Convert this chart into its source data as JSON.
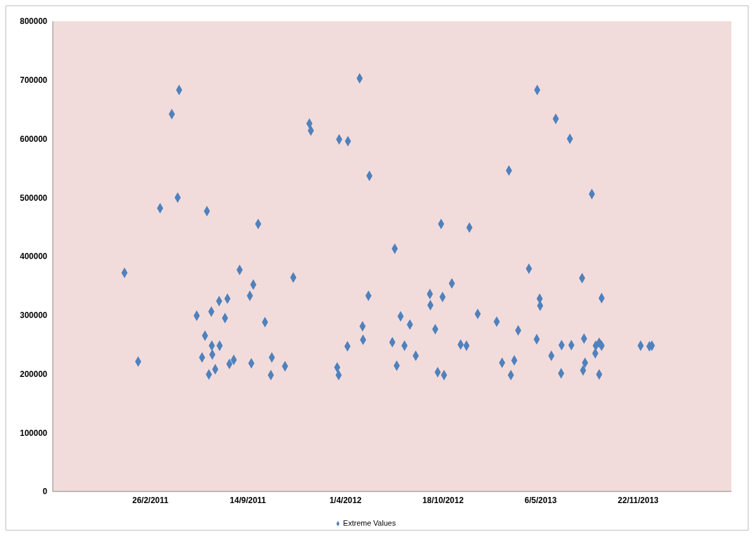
{
  "chart_data": {
    "type": "scatter",
    "x": [
      "2011-01-04",
      "2011-02-01",
      "2011-03-18",
      "2011-04-11",
      "2011-04-23",
      "2011-04-26",
      "2011-06-01",
      "2011-06-12",
      "2011-06-18",
      "2011-06-22",
      "2011-06-26",
      "2011-07-01",
      "2011-07-02",
      "2011-07-03",
      "2011-07-09",
      "2011-07-17",
      "2011-07-18",
      "2011-07-29",
      "2011-08-03",
      "2011-08-07",
      "2011-08-16",
      "2011-08-28",
      "2011-09-18",
      "2011-09-21",
      "2011-09-25",
      "2011-10-05",
      "2011-10-19",
      "2011-10-31",
      "2011-11-02",
      "2011-11-29",
      "2011-12-16",
      "2012-01-18",
      "2012-01-21",
      "2012-03-15",
      "2012-03-18",
      "2012-03-19",
      "2012-04-05",
      "2012-04-06",
      "2012-04-30",
      "2012-05-06",
      "2012-05-07",
      "2012-05-18",
      "2012-05-20",
      "2012-07-06",
      "2012-07-11",
      "2012-07-15",
      "2012-07-23",
      "2012-07-31",
      "2012-08-11",
      "2012-08-23",
      "2012-09-21",
      "2012-09-22",
      "2012-10-02",
      "2012-10-07",
      "2012-10-14",
      "2012-10-17",
      "2012-10-20",
      "2012-11-05",
      "2012-11-23",
      "2012-12-05",
      "2012-12-11",
      "2012-12-28",
      "2013-02-05",
      "2013-02-16",
      "2013-03-02",
      "2013-03-06",
      "2013-03-13",
      "2013-03-21",
      "2013-04-12",
      "2013-04-28",
      "2013-04-29",
      "2013-05-04",
      "2013-05-05",
      "2013-05-28",
      "2013-06-06",
      "2013-06-17",
      "2013-06-18",
      "2013-07-05",
      "2013-07-08",
      "2013-07-30",
      "2013-08-01",
      "2013-08-03",
      "2013-08-05",
      "2013-08-19",
      "2013-08-26",
      "2013-08-27",
      "2013-09-03",
      "2013-09-03",
      "2013-09-08",
      "2013-09-08",
      "2013-11-27",
      "2013-12-15",
      "2013-12-20"
    ],
    "series": [
      {
        "name": "Extreme Values",
        "color": "#4f81bd",
        "values": [
          372000,
          221000,
          482000,
          642000,
          500000,
          683000,
          299000,
          228000,
          265000,
          477000,
          199000,
          306000,
          248000,
          233000,
          208000,
          324000,
          248000,
          295000,
          328000,
          217000,
          224000,
          377000,
          333000,
          218000,
          352000,
          455000,
          288000,
          198000,
          228000,
          213000,
          364000,
          626000,
          614000,
          211000,
          198000,
          599000,
          247000,
          596000,
          703000,
          281000,
          258000,
          333000,
          537000,
          254000,
          413000,
          214000,
          298000,
          248000,
          284000,
          231000,
          336000,
          317000,
          276000,
          203000,
          455000,
          331000,
          198000,
          354000,
          250000,
          248000,
          449000,
          302000,
          289000,
          219000,
          546000,
          198000,
          223000,
          274000,
          379000,
          259000,
          683000,
          328000,
          316000,
          231000,
          634000,
          201000,
          249000,
          600000,
          249000,
          363000,
          206000,
          260000,
          219000,
          506000,
          235000,
          248000,
          253000,
          199000,
          248000,
          329000,
          248000,
          247000,
          248000
        ]
      }
    ],
    "xlim": [
      "2010-08-10",
      "2014-06-01"
    ],
    "xticks": [
      {
        "value": "2011-02-26",
        "label": "26/2/2011"
      },
      {
        "value": "2011-09-14",
        "label": "14/9/2011"
      },
      {
        "value": "2012-04-01",
        "label": "1/4/2012"
      },
      {
        "value": "2012-10-18",
        "label": "18/10/2012"
      },
      {
        "value": "2013-05-06",
        "label": "6/5/2013"
      },
      {
        "value": "2013-11-22",
        "label": "22/11/2013"
      }
    ],
    "ylim": [
      0,
      800000
    ],
    "yticks": [
      0,
      100000,
      200000,
      300000,
      400000,
      500000,
      600000,
      700000,
      800000
    ],
    "marker": "diamond",
    "legend": "bottom"
  }
}
